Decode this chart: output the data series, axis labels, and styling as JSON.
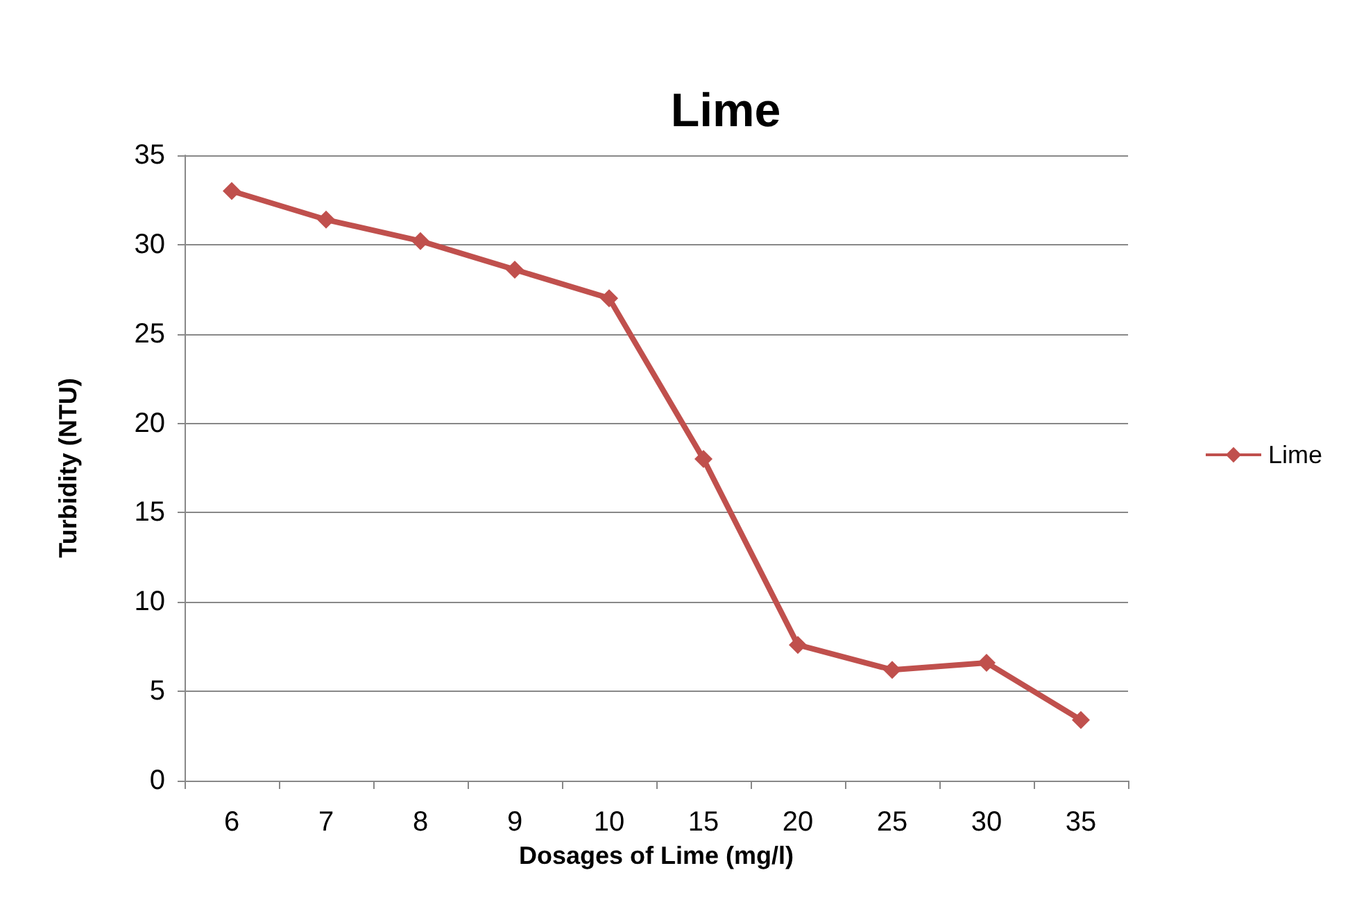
{
  "chart_data": {
    "type": "line",
    "title": "Lime",
    "xlabel": "Dosages of Lime (mg/l)",
    "ylabel": "Turbidity (NTU)",
    "categories": [
      "6",
      "7",
      "8",
      "9",
      "10",
      "15",
      "20",
      "25",
      "30",
      "35"
    ],
    "series": [
      {
        "name": "Lime",
        "color": "#c0504d",
        "values": [
          33,
          31.4,
          30.2,
          28.6,
          27,
          18,
          7.6,
          6.2,
          6.6,
          3.4
        ]
      }
    ],
    "ylim": [
      0,
      35
    ],
    "yticks": [
      0,
      5,
      10,
      15,
      20,
      25,
      30,
      35
    ],
    "grid": "y",
    "legend": "right",
    "marker": "diamond",
    "line_style": "solid"
  }
}
